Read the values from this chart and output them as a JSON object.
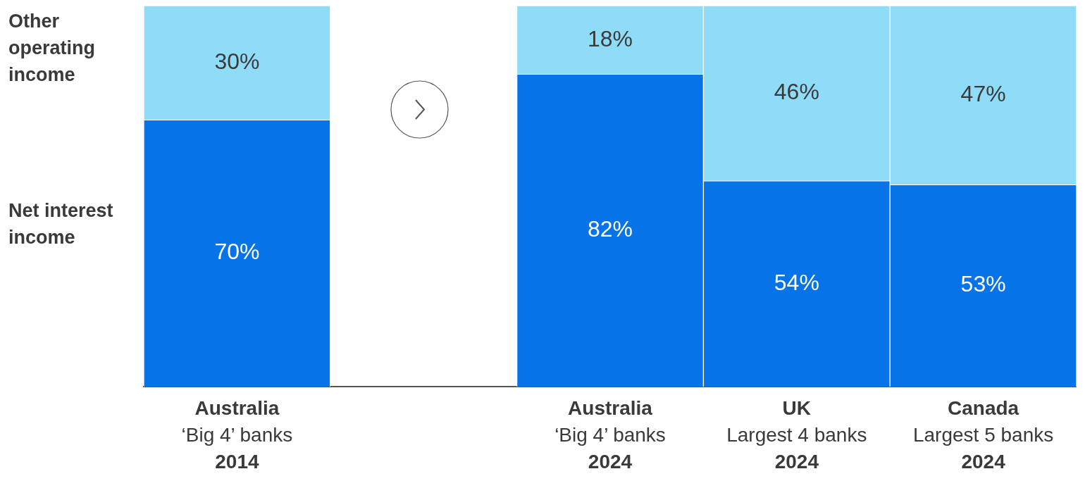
{
  "chart_data": {
    "type": "bar",
    "stacked": true,
    "categories": [
      "Australia\n‘Big 4’ banks\n2014",
      null,
      "Australia\n‘Big 4’ banks\n2024",
      "UK\nLargest 4 banks\n2024",
      "Canada\nLargest 5 banks\n2024"
    ],
    "series": [
      {
        "name": "Net interest income",
        "color": "#0773e8",
        "values": [
          70,
          null,
          82,
          54,
          53
        ],
        "value_labels": [
          "70%",
          null,
          "82%",
          "54%",
          "53%"
        ]
      },
      {
        "name": "Other operating income",
        "color": "#8edcf8",
        "values": [
          30,
          null,
          18,
          46,
          47
        ],
        "value_labels": [
          "30%",
          null,
          "18%",
          "46%",
          "47%"
        ]
      }
    ],
    "ylim": [
      0,
      100
    ],
    "grid": false,
    "legend": false
  }
}
